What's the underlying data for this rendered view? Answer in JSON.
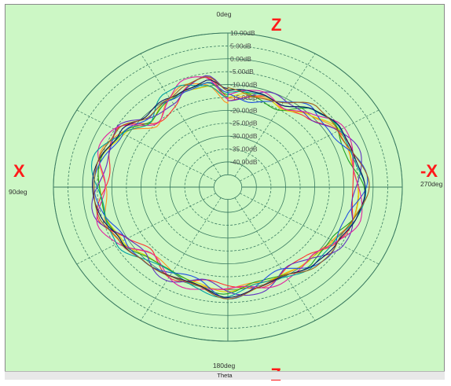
{
  "chart_data": {
    "type": "polar",
    "radial_unit": "dB",
    "radial_ticks": [
      "10.00dB",
      "5.00dB",
      "0.00dB",
      "-5.00dB",
      "-10.00dB",
      "-15.00dB",
      "-20.00dB",
      "-25.00dB",
      "-30.00dB",
      "-35.00dB",
      "-40.00dB"
    ],
    "radial_range": [
      -45,
      10
    ],
    "angle_labels": {
      "top": "0deg",
      "left": "90deg",
      "bottom": "180deg",
      "right": "270deg"
    },
    "angle_direction": "counter-clockwise from top",
    "xlabel": "Theta",
    "axis_annotations": {
      "top": "Z",
      "bottom": "-Z",
      "left": "X",
      "right": "-X"
    },
    "grid": true,
    "series_colors": [
      "#ff3030",
      "#ff9020",
      "#e0d000",
      "#20a020",
      "#2050e0",
      "#6030c0",
      "#e020a0",
      "#00a0a0",
      "#101060",
      "#a06020"
    ],
    "curve_theta_deg": [
      0,
      10,
      20,
      30,
      45,
      60,
      75,
      90,
      105,
      120,
      135,
      150,
      165,
      180,
      195,
      210,
      225,
      240,
      255,
      270,
      285,
      300,
      315,
      330,
      340,
      350
    ],
    "curve_db_base": [
      -14,
      -8,
      -8.5,
      -10.5,
      -13,
      -7,
      -5,
      -5.5,
      -5,
      -8,
      -11,
      -10.5,
      -11,
      -8.5,
      -10,
      -11,
      -9,
      -7,
      -5,
      -4,
      -5,
      -6,
      -9,
      -13,
      -12.5,
      -13.5
    ]
  },
  "theta_bar": "Theta"
}
